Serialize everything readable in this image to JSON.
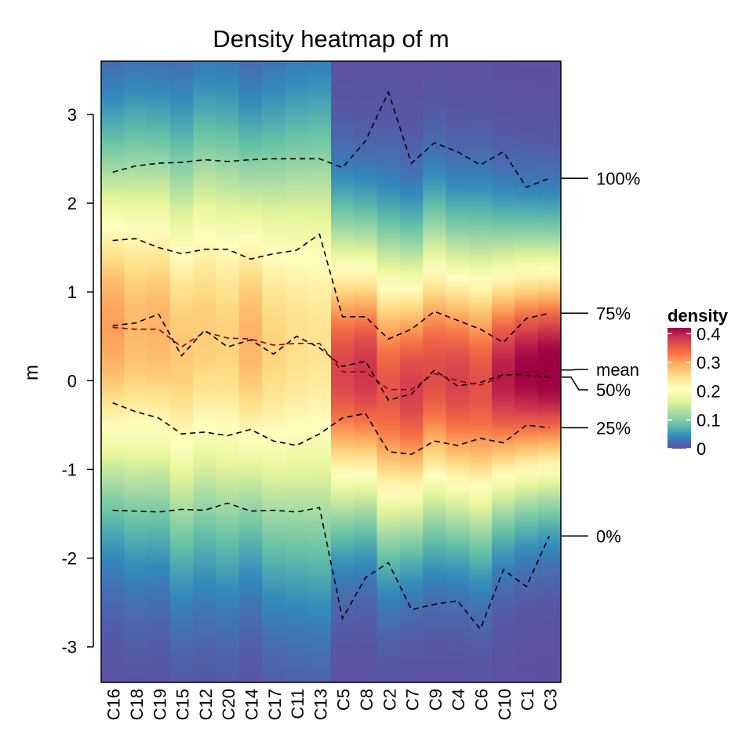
{
  "chart_data": {
    "type": "heatmap",
    "title": "Density heatmap of m",
    "ylabel": "m",
    "ylim": [
      -3.4,
      3.6
    ],
    "y_ticks": [
      3,
      2,
      1,
      0,
      -1,
      -2,
      -3
    ],
    "y_tick_labels": [
      "3",
      "2",
      "1",
      "0",
      "-1",
      "-2",
      "-3"
    ],
    "categories": [
      "C16",
      "C18",
      "C19",
      "C15",
      "C12",
      "C20",
      "C14",
      "C17",
      "C11",
      "C13",
      "C5",
      "C8",
      "C2",
      "C7",
      "C9",
      "C4",
      "C6",
      "C10",
      "C1",
      "C3"
    ],
    "series": [
      {
        "name": "100%",
        "values": [
          2.35,
          2.42,
          2.45,
          2.46,
          2.49,
          2.47,
          2.49,
          2.5,
          2.5,
          2.5,
          2.4,
          2.7,
          3.25,
          2.45,
          2.68,
          2.58,
          2.43,
          2.58,
          2.18,
          2.28
        ]
      },
      {
        "name": "75%",
        "values": [
          1.58,
          1.6,
          1.5,
          1.43,
          1.48,
          1.48,
          1.37,
          1.43,
          1.47,
          1.65,
          0.72,
          0.72,
          0.47,
          0.58,
          0.78,
          0.68,
          0.58,
          0.43,
          0.7,
          0.76
        ]
      },
      {
        "name": "mean",
        "values": [
          0.6,
          0.58,
          0.58,
          0.38,
          0.55,
          0.48,
          0.47,
          0.4,
          0.42,
          0.42,
          0.1,
          0.1,
          -0.1,
          -0.1,
          0.08,
          0.0,
          -0.05,
          0.05,
          0.1,
          0.12
        ]
      },
      {
        "name": "50%",
        "values": [
          0.62,
          0.65,
          0.75,
          0.28,
          0.57,
          0.38,
          0.46,
          0.3,
          0.5,
          0.37,
          0.16,
          0.22,
          -0.22,
          -0.15,
          0.12,
          -0.06,
          -0.02,
          0.07,
          0.06,
          0.04
        ]
      },
      {
        "name": "25%",
        "values": [
          -0.25,
          -0.35,
          -0.42,
          -0.6,
          -0.58,
          -0.62,
          -0.55,
          -0.68,
          -0.73,
          -0.6,
          -0.42,
          -0.37,
          -0.8,
          -0.83,
          -0.68,
          -0.73,
          -0.65,
          -0.7,
          -0.5,
          -0.53
        ]
      },
      {
        "name": "0%",
        "values": [
          -1.46,
          -1.47,
          -1.48,
          -1.45,
          -1.46,
          -1.38,
          -1.47,
          -1.46,
          -1.48,
          -1.43,
          -2.68,
          -2.22,
          -2.05,
          -2.58,
          -2.52,
          -2.48,
          -2.8,
          -2.13,
          -2.32,
          -1.75
        ]
      }
    ],
    "quantile_labels": {
      "q100": "100%",
      "q75": "75%",
      "mean": "mean",
      "q50": "50%",
      "q25": "25%",
      "q0": "0%"
    },
    "legend": {
      "title": "density",
      "ticks": [
        0.4,
        0.3,
        0.2,
        0.1,
        0
      ],
      "tick_labels": [
        "0.4",
        "0.3",
        "0.2",
        "0.1",
        "0"
      ],
      "range": [
        0,
        0.42
      ]
    },
    "colors": {
      "palette": [
        "#5E4FA2",
        "#3288BD",
        "#66C2A5",
        "#ABDDA4",
        "#E6F598",
        "#FFFFBF",
        "#FEE08B",
        "#FDAE61",
        "#F46D43",
        "#D53E4F",
        "#9E0142"
      ],
      "background": "#473C8B",
      "quantile_line": "#000000",
      "mean_line": "#8B0000"
    },
    "grid": false,
    "legend_position": "right"
  }
}
